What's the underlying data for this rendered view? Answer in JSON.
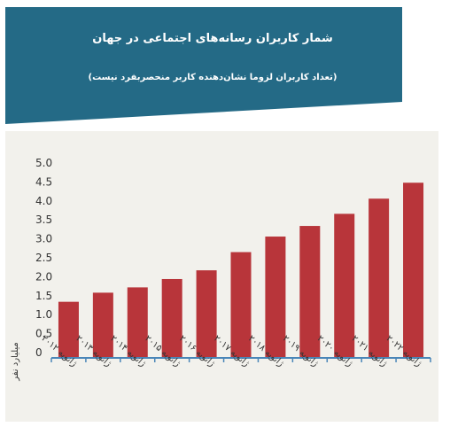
{
  "header": {
    "title": "شمار کاربران رسانه‌های اجتماعی در جهان",
    "subtitle": "(تعداد کاربران لزوما نشان‌دهنده کاربر منحصربفرد نیست)"
  },
  "colors": {
    "banner": "#246a86",
    "bar": "#b8353a",
    "axis": "#4a86b8",
    "panel": "#f2f1ec"
  },
  "chart_data": {
    "type": "bar",
    "title": "شمار کاربران رسانه‌های اجتماعی در جهان",
    "subtitle": "(تعداد کاربران لزوما نشان‌دهنده کاربر منحصربفرد نیست)",
    "ylabel": "میلیارد نفر",
    "xlabel": "",
    "categories": [
      "ژانویه ۲۰۱۲",
      "ژانویه ۲۰۱۳",
      "ژانویه ۲۰۱۴",
      "ژانویه ۲۰۱۵",
      "ژانویه ۲۰۱۶",
      "ژانویه ۲۰۱۷",
      "ژانویه ۲۰۱۸",
      "ژانویه ۲۰۱۹",
      "ژانویه ۲۰۲۰",
      "ژانویه ۲۰۲۱",
      "ژانویه ۲۰۲۲"
    ],
    "values": [
      1.48,
      1.72,
      1.86,
      2.08,
      2.31,
      2.79,
      3.2,
      3.48,
      3.8,
      4.2,
      4.62
    ],
    "yticks": [
      "0",
      "0.5",
      "1.0",
      "1.5",
      "2.0",
      "2.5",
      "3.0",
      "3.5",
      "4.0",
      "4.5",
      "5.0"
    ],
    "ylim": [
      0,
      5.0
    ],
    "grid": false,
    "legend": "none"
  }
}
